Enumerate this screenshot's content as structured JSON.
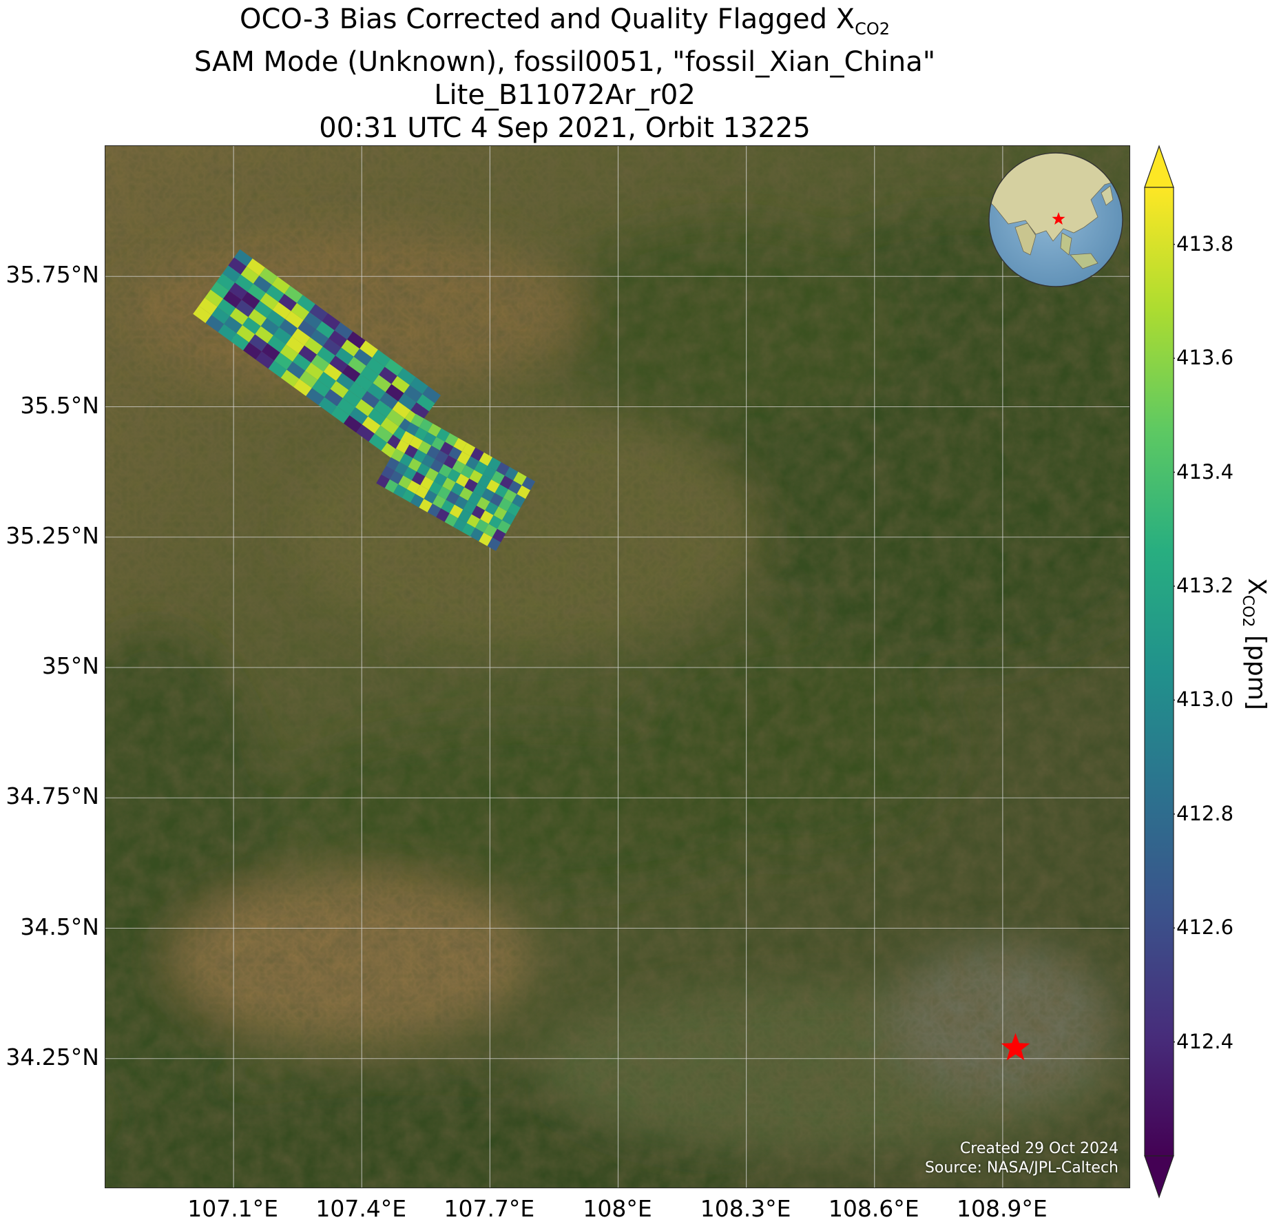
{
  "title": {
    "line1_prefix": "OCO-3 Bias Corrected and Quality Flagged X",
    "line1_sub": "CO2",
    "line2": "SAM Mode (Unknown), fossil0051, \"fossil_Xian_China\"",
    "line3": "Lite_B11072Ar_r02",
    "line4": "00:31 UTC 4 Sep 2021, Orbit 13225"
  },
  "map": {
    "extent": {
      "lon": [
        106.8,
        109.2
      ],
      "lat": [
        34.0,
        36.0
      ]
    },
    "lat_ticks": [
      "35.75°N",
      "35.5°N",
      "35.25°N",
      "35°N",
      "34.75°N",
      "34.5°N",
      "34.25°N"
    ],
    "lon_ticks": [
      "107.1°E",
      "107.4°E",
      "107.7°E",
      "108°E",
      "108.3°E",
      "108.6°E",
      "108.9°E"
    ],
    "target": {
      "name": "fossil_Xian_China",
      "lon": 108.93,
      "lat": 34.27,
      "marker": "red-star",
      "color": "#ff0000"
    },
    "credit_line1": "Created 29 Oct 2024",
    "credit_line2": "Source: NASA/JPL-Caltech",
    "inset": "globe-locator-asia"
  },
  "colorbar": {
    "label_prefix": "X",
    "label_sub": "CO2",
    "label_suffix": " [ppm]",
    "min": 412.2,
    "max": 413.9,
    "extend": "both",
    "colormap": "viridis",
    "ticks": [
      "412.4",
      "412.6",
      "412.8",
      "413.0",
      "413.2",
      "413.4",
      "413.6",
      "413.8"
    ]
  },
  "chart_data": {
    "type": "heatmap",
    "title": "OCO-3 Bias Corrected and Quality Flagged XCO2",
    "xlabel": "",
    "ylabel": "",
    "colorbar_label": "XCO2 [ppm]",
    "swaths": [
      {
        "name": "swath-1",
        "lon_start": 107.06,
        "lat_start": 35.74,
        "lon_end": 107.53,
        "lat_end": 35.46,
        "xco2_values": [
          412.9,
          413.2,
          412.5,
          413.8,
          413.3,
          412.4,
          413.6,
          413.1,
          412.7,
          413.7,
          413.0,
          412.3,
          413.5,
          412.8,
          413.8,
          413.2
        ]
      },
      {
        "name": "swath-2",
        "lon_start": 107.48,
        "lat_start": 35.42,
        "lon_end": 107.76,
        "lat_end": 35.29,
        "xco2_values": [
          413.5,
          413.8,
          412.6,
          413.4,
          413.8,
          412.9,
          413.6,
          412.4,
          413.7,
          413.2,
          413.8,
          412.7,
          413.5,
          413.1
        ]
      }
    ]
  },
  "colors": {
    "target_star": "#ff0000",
    "gridline": "#d8d8d8",
    "credit_text": "#ffffff"
  }
}
